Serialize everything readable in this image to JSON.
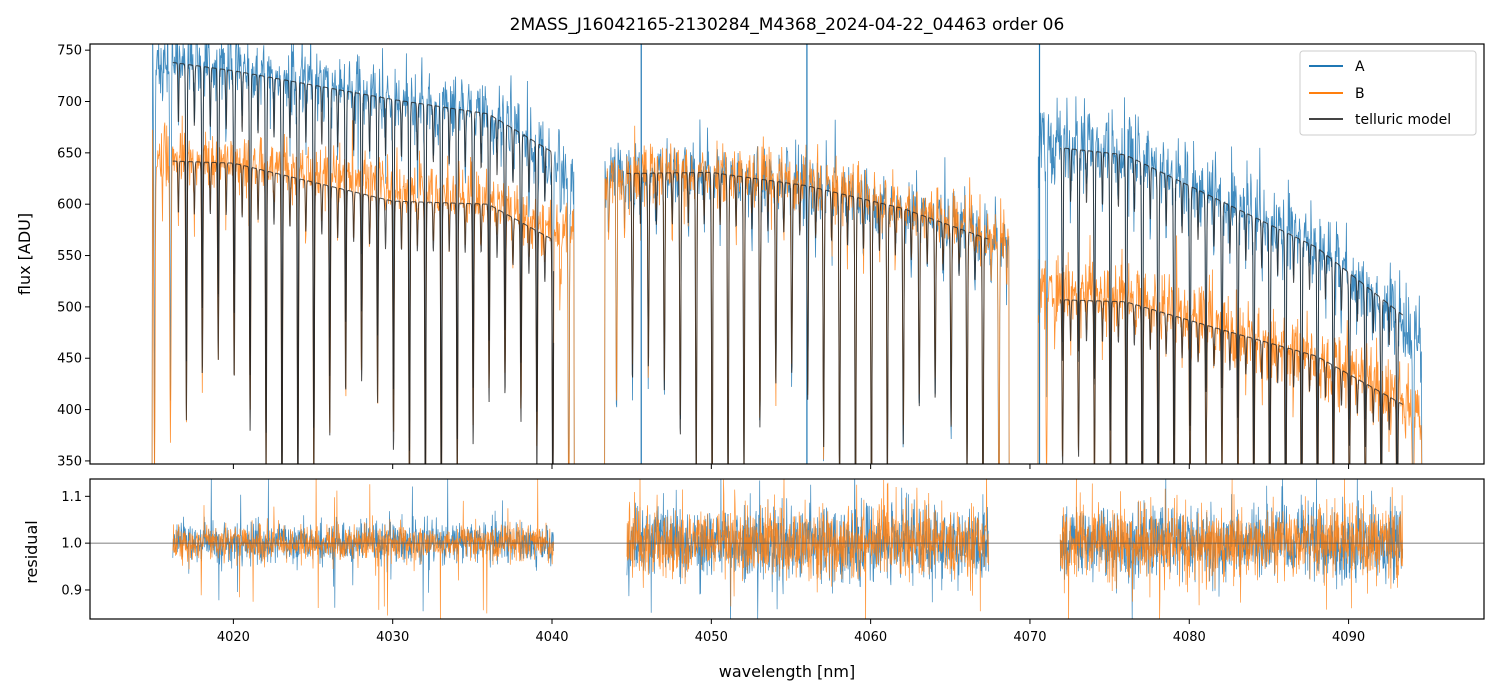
{
  "chart_data": {
    "title": "2MASS_J16042165-2130284_M4368_2024-04-22_04463  order 06",
    "xlabel": "wavelength [nm]",
    "xlim": [
      4011,
      4098.5
    ],
    "xticks": [
      4020,
      4030,
      4040,
      4050,
      4060,
      4070,
      4080,
      4090
    ],
    "colors": {
      "A": "#1f77b4",
      "B": "#ff7f0e",
      "model": "#222222",
      "ref": "#555555"
    },
    "legend": [
      {
        "key": "A",
        "label": "A"
      },
      {
        "key": "B",
        "label": "B"
      },
      {
        "key": "model",
        "label": "telluric model"
      }
    ],
    "panels": [
      {
        "name": "flux",
        "type": "line",
        "ylabel": "flux [ADU]",
        "ylim": [
          347,
          756
        ],
        "yticks": [
          350,
          400,
          450,
          500,
          550,
          600,
          650,
          700,
          750
        ],
        "series": [
          {
            "name": "A",
            "segments": [
              {
                "x0": 4014.9,
                "x1": 4041.4,
                "continuum": [
                  [
                    4014.9,
                    745
                  ],
                  [
                    4020,
                    735
                  ],
                  [
                    4030,
                    705
                  ],
                  [
                    4036,
                    690
                  ],
                  [
                    4041.4,
                    630
                  ]
                ],
                "noise": 30
              },
              {
                "x0": 4043.3,
                "x1": 4068.7,
                "continuum": [
                  [
                    4043.3,
                    628
                  ],
                  [
                    4050,
                    632
                  ],
                  [
                    4056,
                    618
                  ],
                  [
                    4062,
                    595
                  ],
                  [
                    4068.7,
                    565
                  ]
                ],
                "noise": 25
              },
              {
                "x0": 4070.5,
                "x1": 4094.6,
                "continuum": [
                  [
                    4070.5,
                    665
                  ],
                  [
                    4076,
                    650
                  ],
                  [
                    4082,
                    605
                  ],
                  [
                    4088,
                    560
                  ],
                  [
                    4094.6,
                    470
                  ]
                ],
                "noise": 32
              }
            ]
          },
          {
            "name": "B",
            "segments": [
              {
                "x0": 4014.9,
                "x1": 4041.4,
                "continuum": [
                  [
                    4014.9,
                    645
                  ],
                  [
                    4020,
                    645
                  ],
                  [
                    4030,
                    620
                  ],
                  [
                    4036,
                    605
                  ],
                  [
                    4041.4,
                    570
                  ]
                ],
                "noise": 25
              },
              {
                "x0": 4043.3,
                "x1": 4068.7,
                "continuum": [
                  [
                    4043.3,
                    628
                  ],
                  [
                    4050,
                    632
                  ],
                  [
                    4056,
                    620
                  ],
                  [
                    4062,
                    598
                  ],
                  [
                    4068.7,
                    570
                  ]
                ],
                "noise": 25
              },
              {
                "x0": 4070.5,
                "x1": 4094.6,
                "continuum": [
                  [
                    4070.5,
                    520
                  ],
                  [
                    4076,
                    512
                  ],
                  [
                    4082,
                    480
                  ],
                  [
                    4088,
                    450
                  ],
                  [
                    4094.6,
                    400
                  ]
                ],
                "noise": 28
              }
            ]
          },
          {
            "name": "telluric model (A)",
            "segments": [
              {
                "x0": 4016.2,
                "x1": 4040.1,
                "continuum": [
                  [
                    4016.2,
                    738
                  ],
                  [
                    4020,
                    730
                  ],
                  [
                    4030,
                    702
                  ],
                  [
                    4036,
                    688
                  ],
                  [
                    4040.1,
                    650
                  ]
                ]
              },
              {
                "x0": 4044.7,
                "x1": 4067.4,
                "continuum": [
                  [
                    4044.7,
                    630
                  ],
                  [
                    4050,
                    631
                  ],
                  [
                    4056,
                    618
                  ],
                  [
                    4062,
                    596
                  ],
                  [
                    4067.4,
                    566
                  ]
                ]
              },
              {
                "x0": 4071.9,
                "x1": 4093.4,
                "continuum": [
                  [
                    4071.9,
                    655
                  ],
                  [
                    4076,
                    648
                  ],
                  [
                    4082,
                    603
                  ],
                  [
                    4088,
                    558
                  ],
                  [
                    4093.4,
                    492
                  ]
                ]
              }
            ]
          },
          {
            "name": "telluric model (B)",
            "segments": [
              {
                "x0": 4016.2,
                "x1": 4040.1,
                "continuum": [
                  [
                    4016.2,
                    642
                  ],
                  [
                    4020,
                    640
                  ],
                  [
                    4030,
                    603
                  ],
                  [
                    4036,
                    600
                  ],
                  [
                    4040.1,
                    565
                  ]
                ]
              },
              {
                "x0": 4071.9,
                "x1": 4093.4,
                "continuum": [
                  [
                    4071.9,
                    507
                  ],
                  [
                    4076,
                    505
                  ],
                  [
                    4082,
                    478
                  ],
                  [
                    4088,
                    452
                  ],
                  [
                    4093.4,
                    405
                  ]
                ]
              }
            ]
          }
        ]
      },
      {
        "name": "residual",
        "type": "line",
        "ylabel": "residual",
        "ylim": [
          0.838,
          1.137
        ],
        "yticks": [
          0.9,
          1.0,
          1.1
        ],
        "yticklabels": [
          "0.9",
          "1.0",
          "1.1"
        ],
        "reference_line": 1.0,
        "segments": [
          {
            "x0": 4016.2,
            "x1": 4040.1,
            "noise_A": 0.04,
            "noise_B": 0.035
          },
          {
            "x0": 4044.7,
            "x1": 4067.4,
            "noise_A": 0.07,
            "noise_B": 0.07
          },
          {
            "x0": 4071.9,
            "x1": 4093.4,
            "noise_A": 0.07,
            "noise_B": 0.07
          }
        ]
      }
    ]
  }
}
